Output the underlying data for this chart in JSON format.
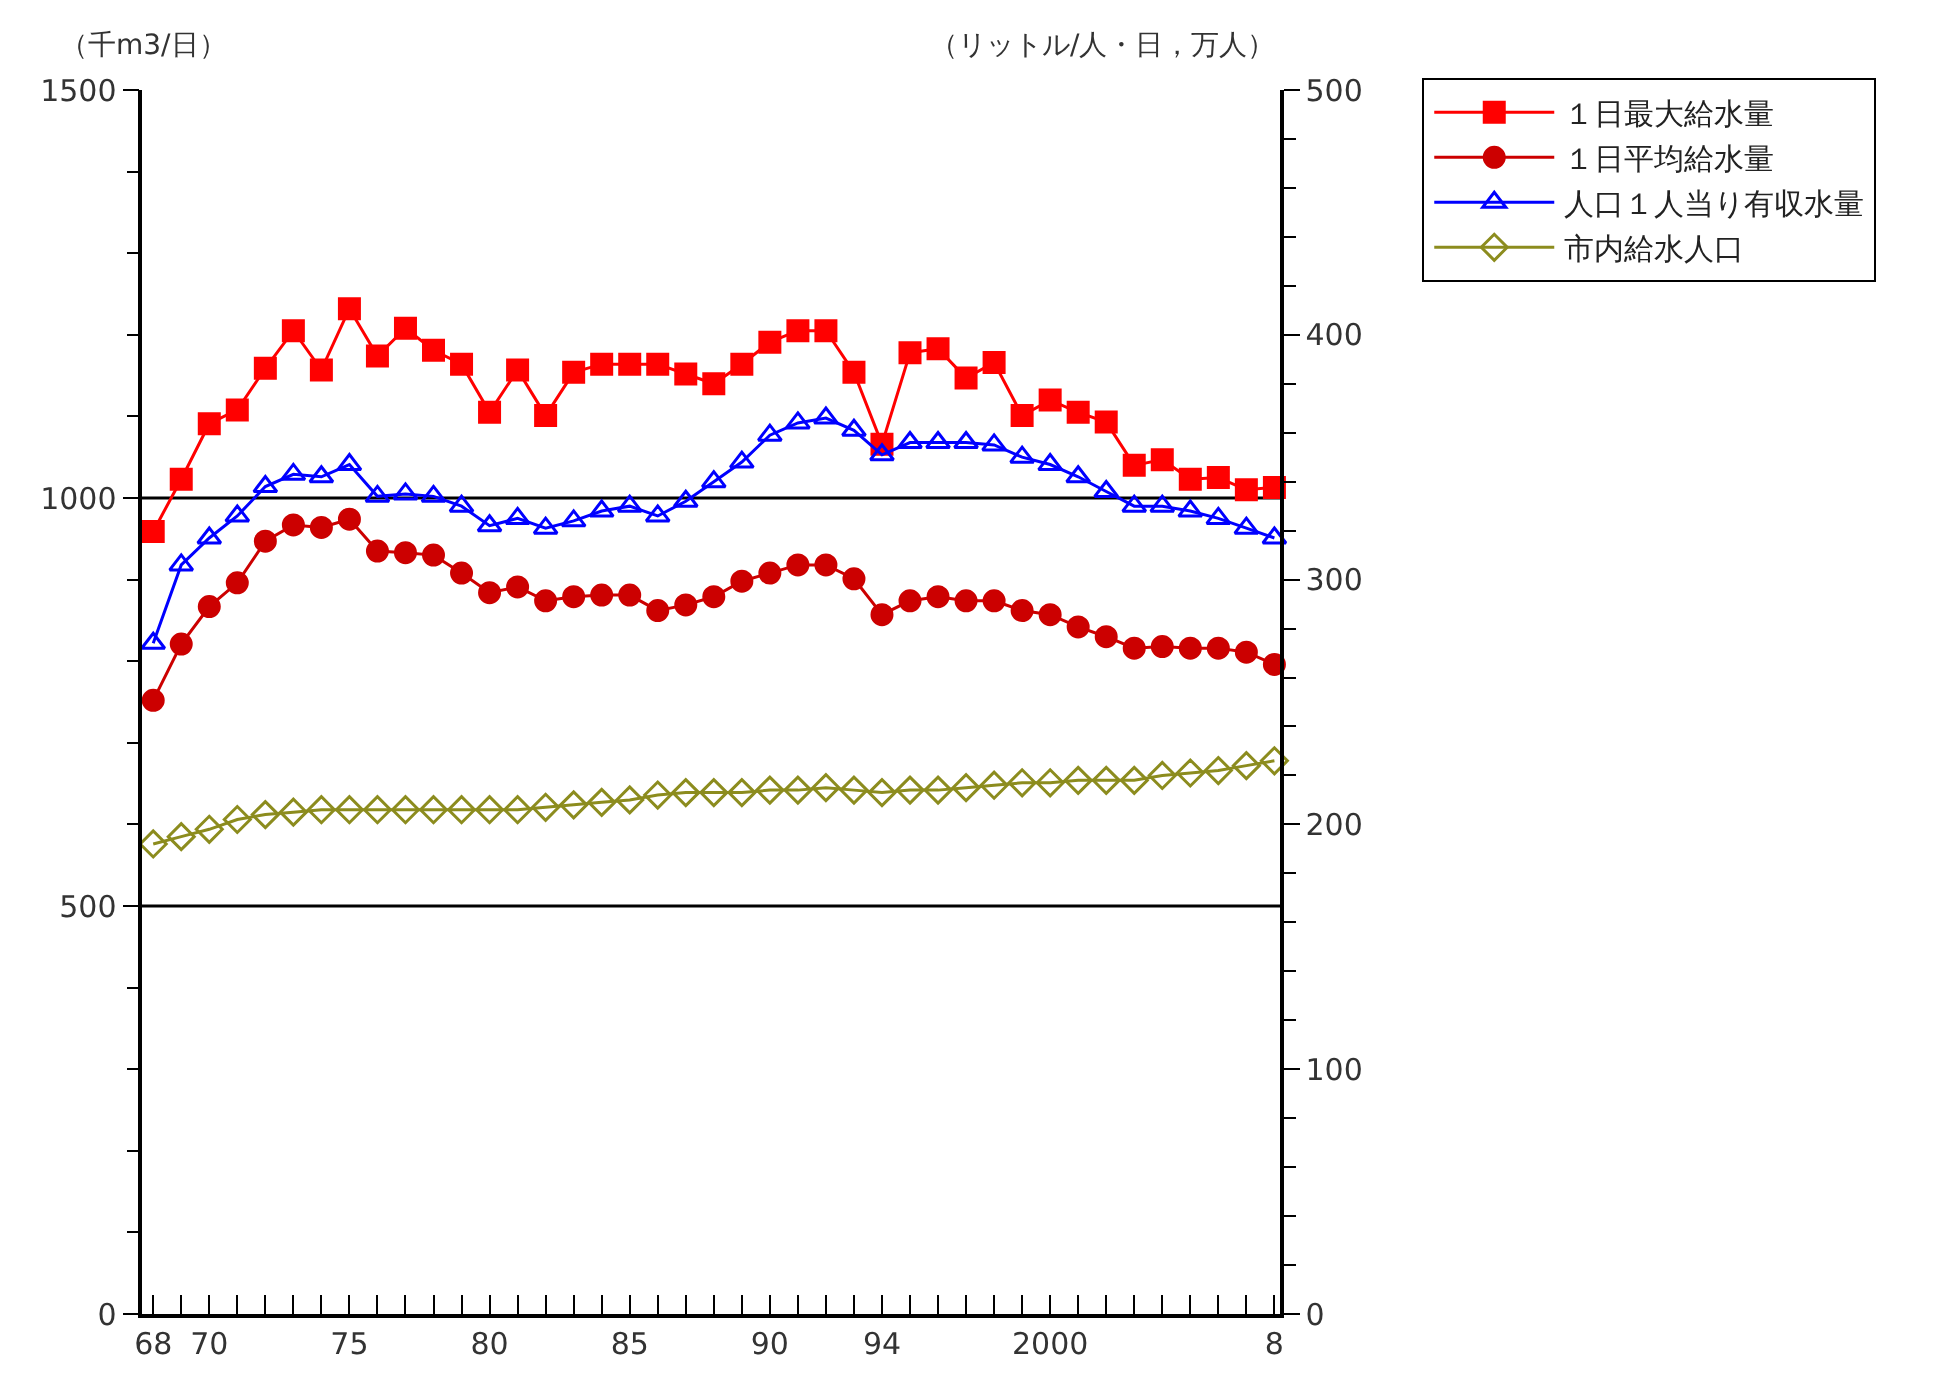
{
  "chart_data": {
    "type": "line",
    "ylabel": "（千m3/日）",
    "y2label": "（リットル/人・日，万人）",
    "categories": [
      "68",
      null,
      "70",
      null,
      null,
      null,
      null,
      "75",
      null,
      null,
      null,
      null,
      "80",
      null,
      null,
      null,
      null,
      "85",
      null,
      null,
      null,
      null,
      "90",
      null,
      null,
      null,
      "94",
      null,
      null,
      null,
      null,
      null,
      "2000",
      null,
      null,
      null,
      null,
      null,
      null,
      null,
      "8"
    ],
    "series": [
      {
        "name": "１日最大給水量",
        "color": "#ff0000",
        "marker": "square",
        "values": [
          959,
          1023,
          1091,
          1108,
          1159,
          1205,
          1157,
          1232,
          1174,
          1208,
          1181,
          1164,
          1105,
          1157,
          1101,
          1154,
          1164,
          1164,
          1164,
          1152,
          1140,
          1164,
          1191,
          1205,
          1205,
          1154,
          1066,
          1178,
          1183,
          1147,
          1166,
          1101,
          1120,
          1105,
          1093,
          1040,
          1047,
          1023,
          1025,
          1010,
          1013
        ]
      },
      {
        "name": "１日平均給水量",
        "color": "#cc0000",
        "marker": "circle",
        "values": [
          752,
          821,
          867,
          896,
          947,
          967,
          964,
          974,
          935,
          933,
          930,
          908,
          884,
          891,
          874,
          879,
          881,
          881,
          862,
          869,
          879,
          898,
          908,
          918,
          918,
          901,
          857,
          874,
          879,
          874,
          874,
          862,
          857,
          842,
          830,
          816,
          818,
          816,
          816,
          811,
          796
        ]
      },
      {
        "name": "人口１人当り有収水量",
        "color": "#0000ff",
        "marker": "triangle",
        "axis": "y2",
        "values": [
          274,
          306,
          317,
          326,
          338,
          343,
          342,
          347,
          334,
          335,
          334,
          330,
          322,
          325,
          321,
          324,
          328,
          330,
          326,
          332,
          340,
          348,
          359,
          364,
          366,
          361,
          351,
          356,
          356,
          356,
          355,
          350,
          347,
          342,
          336,
          330,
          330,
          328,
          325,
          321,
          317
        ]
      },
      {
        "name": "市内給水人口",
        "color": "#8c8c1e",
        "marker": "diamond",
        "axis": "y2",
        "values": [
          192,
          195,
          198,
          202,
          204,
          205,
          206,
          206,
          206,
          206,
          206,
          206,
          206,
          206,
          207,
          208,
          209,
          210,
          212,
          213,
          213,
          213,
          214,
          214,
          215,
          214,
          213,
          214,
          214,
          215,
          216,
          217,
          217,
          218,
          218,
          218,
          220,
          221,
          222,
          224,
          226
        ]
      }
    ],
    "ylim": [
      0,
      1500
    ],
    "yticks": [
      0,
      {
        "value": 100,
        "label": null
      },
      {
        "value": 200,
        "label": null
      },
      {
        "value": 300,
        "label": null
      },
      {
        "value": 400,
        "label": null
      },
      500,
      {
        "value": 600,
        "label": null
      },
      {
        "value": 700,
        "label": null
      },
      {
        "value": 800,
        "label": null
      },
      {
        "value": 900,
        "label": null
      },
      1000,
      {
        "value": 1100,
        "label": null
      },
      {
        "value": 1200,
        "label": null
      },
      {
        "value": 1300,
        "label": null
      },
      {
        "value": 1400,
        "label": null
      },
      1500
    ],
    "y2lim": [
      0,
      500
    ],
    "y2ticks": [
      0,
      {
        "value": 20,
        "label": null
      },
      {
        "value": 40,
        "label": null
      },
      {
        "value": 60,
        "label": null
      },
      {
        "value": 80,
        "label": null
      },
      100,
      {
        "value": 120,
        "label": null
      },
      {
        "value": 140,
        "label": null
      },
      {
        "value": 160,
        "label": null
      },
      {
        "value": 180,
        "label": null
      },
      200,
      {
        "value": 220,
        "label": null
      },
      {
        "value": 240,
        "label": null
      },
      {
        "value": 260,
        "label": null
      },
      {
        "value": 280,
        "label": null
      },
      300,
      {
        "value": 320,
        "label": null
      },
      {
        "value": 340,
        "label": null
      },
      {
        "value": 360,
        "label": null
      },
      {
        "value": 380,
        "label": null
      },
      400,
      {
        "value": 420,
        "label": null
      },
      {
        "value": 440,
        "label": null
      },
      {
        "value": 460,
        "label": null
      },
      {
        "value": 480,
        "label": null
      },
      500
    ],
    "ref_lines": [
      {
        "axis": "y",
        "value": 500,
        "color": "#000000"
      },
      {
        "axis": "y",
        "value": 1000,
        "color": "#000000"
      }
    ],
    "legend": "top right",
    "line_style": "solid"
  }
}
